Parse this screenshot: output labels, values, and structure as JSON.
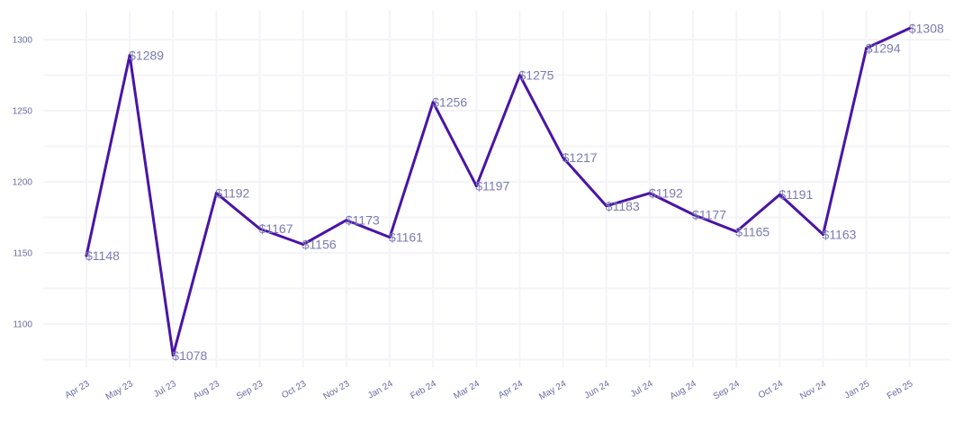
{
  "chart_data": {
    "type": "line",
    "categories": [
      "Apr 23",
      "May 23",
      "Jul 23",
      "Aug 23",
      "Sep 23",
      "Oct 23",
      "Nov 23",
      "Jan 24",
      "Feb 24",
      "Mar 24",
      "Apr 24",
      "May 24",
      "Jun 24",
      "Jul 24",
      "Aug 24",
      "Sep 24",
      "Oct 24",
      "Nov 24",
      "Jan 25",
      "Feb 25"
    ],
    "series": [
      {
        "values": [
          1148,
          1289,
          1078,
          1192,
          1167,
          1156,
          1173,
          1161,
          1256,
          1197,
          1275,
          1217,
          1183,
          1192,
          1177,
          1165,
          1191,
          1163,
          1294,
          1308
        ],
        "data_labels": [
          "$1148",
          "$1289",
          "$1078",
          "$1192",
          "$1167",
          "$1156",
          "$1173",
          "$1161",
          "$1256",
          "$1197",
          "$1275",
          "$1217",
          "$1183",
          "$1192",
          "$1177",
          "$1165",
          "$1191",
          "$1163",
          "$1294",
          "$1308"
        ],
        "color": "#4a14a6"
      }
    ],
    "yticks": [
      1100,
      1150,
      1200,
      1250,
      1300
    ],
    "ylim": [
      1072,
      1310
    ],
    "grid": true,
    "legend": "none",
    "title": "",
    "xlabel": "",
    "ylabel": ""
  }
}
